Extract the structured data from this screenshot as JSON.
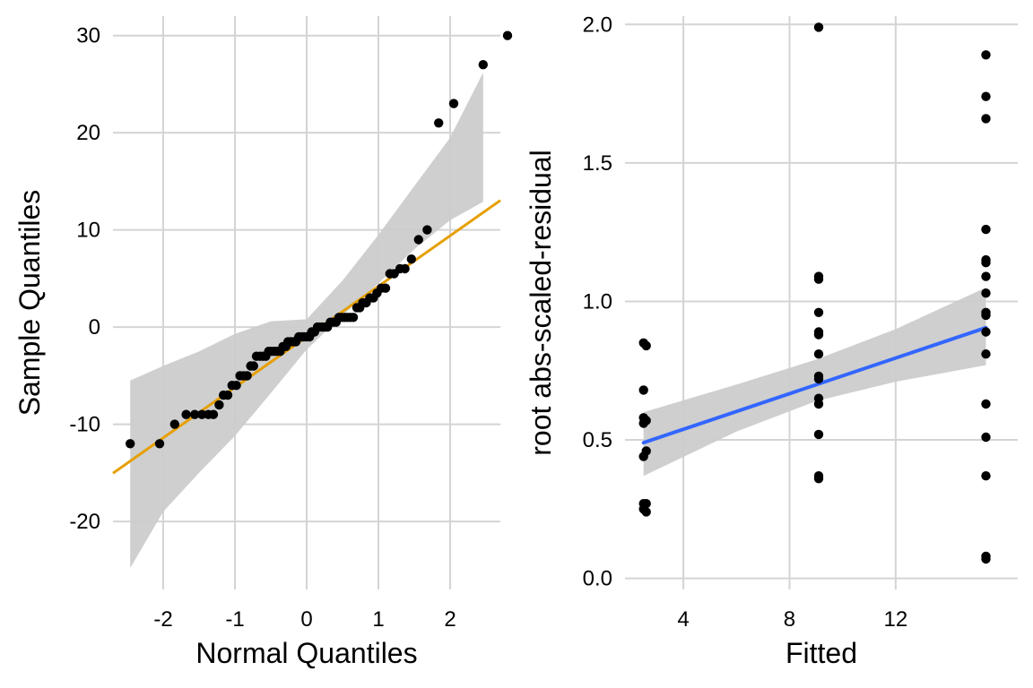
{
  "chart_data": [
    {
      "type": "scatter",
      "panel": "qq",
      "xlabel": "Normal Quantiles",
      "ylabel": "Sample Quantiles",
      "xlim": [
        -2.7,
        2.7
      ],
      "ylim": [
        -27,
        32
      ],
      "x_ticks": [
        -2,
        -1,
        0,
        1,
        2
      ],
      "x_tick_labels": [
        "-2",
        "-1",
        "0",
        "1",
        "2"
      ],
      "y_ticks": [
        -20,
        -10,
        0,
        10,
        20,
        30
      ],
      "y_tick_labels": [
        "-20",
        "-10",
        "0",
        "10",
        "20",
        "30"
      ],
      "grid": true,
      "reference_line": {
        "intercept": -1.0,
        "slope": 5.2,
        "color": "#e69f00"
      },
      "confidence_band": {
        "color": "#cccccc",
        "x": [
          -2.46,
          -2.0,
          -1.5,
          -1.0,
          -0.5,
          0.0,
          0.5,
          1.0,
          1.5,
          2.0,
          2.46
        ],
        "lower": [
          -24.8,
          -19.0,
          -15.0,
          -11.2,
          -6.8,
          -2.3,
          1.2,
          4.5,
          8.0,
          11.0,
          12.9
        ],
        "upper": [
          -5.5,
          -4.0,
          -2.5,
          -0.7,
          0.6,
          0.8,
          4.8,
          9.5,
          14.5,
          19.5,
          26.2
        ]
      },
      "points": [
        [
          -2.46,
          -12
        ],
        [
          -2.05,
          -12
        ],
        [
          -1.84,
          -10
        ],
        [
          -1.68,
          -9
        ],
        [
          -1.56,
          -9
        ],
        [
          -1.46,
          -9
        ],
        [
          -1.37,
          -9
        ],
        [
          -1.3,
          -9
        ],
        [
          -1.22,
          -8
        ],
        [
          -1.16,
          -7
        ],
        [
          -1.1,
          -7
        ],
        [
          -1.04,
          -6
        ],
        [
          -0.98,
          -6
        ],
        [
          -0.93,
          -5
        ],
        [
          -0.88,
          -5
        ],
        [
          -0.83,
          -5
        ],
        [
          -0.78,
          -4
        ],
        [
          -0.74,
          -4
        ],
        [
          -0.7,
          -3
        ],
        [
          -0.65,
          -3
        ],
        [
          -0.61,
          -3
        ],
        [
          -0.57,
          -3
        ],
        [
          -0.53,
          -2.5
        ],
        [
          -0.49,
          -2.5
        ],
        [
          -0.45,
          -2.5
        ],
        [
          -0.41,
          -2.5
        ],
        [
          -0.37,
          -2.5
        ],
        [
          -0.33,
          -2
        ],
        [
          -0.29,
          -2
        ],
        [
          -0.26,
          -1.5
        ],
        [
          -0.22,
          -1.5
        ],
        [
          -0.18,
          -1.5
        ],
        [
          -0.15,
          -1.5
        ],
        [
          -0.11,
          -1
        ],
        [
          -0.07,
          -1
        ],
        [
          -0.04,
          -1
        ],
        [
          0.0,
          -1
        ],
        [
          0.04,
          -1
        ],
        [
          0.07,
          -0.5
        ],
        [
          0.11,
          -0.5
        ],
        [
          0.15,
          0
        ],
        [
          0.18,
          0
        ],
        [
          0.22,
          0
        ],
        [
          0.26,
          0
        ],
        [
          0.29,
          0
        ],
        [
          0.33,
          0.5
        ],
        [
          0.37,
          0.5
        ],
        [
          0.41,
          0.5
        ],
        [
          0.45,
          1
        ],
        [
          0.49,
          1
        ],
        [
          0.53,
          1
        ],
        [
          0.57,
          1
        ],
        [
          0.61,
          1
        ],
        [
          0.65,
          1
        ],
        [
          0.7,
          2
        ],
        [
          0.74,
          2
        ],
        [
          0.78,
          2.5
        ],
        [
          0.83,
          2.5
        ],
        [
          0.88,
          3
        ],
        [
          0.93,
          3
        ],
        [
          0.98,
          3.5
        ],
        [
          1.04,
          4
        ],
        [
          1.1,
          4
        ],
        [
          1.16,
          5.5
        ],
        [
          1.22,
          5.5
        ],
        [
          1.3,
          6
        ],
        [
          1.37,
          6
        ],
        [
          1.46,
          7
        ],
        [
          1.56,
          9
        ],
        [
          1.68,
          10
        ],
        [
          1.84,
          21
        ],
        [
          2.05,
          23
        ],
        [
          2.46,
          27
        ],
        [
          2.8,
          30
        ]
      ]
    },
    {
      "type": "scatter",
      "panel": "scale-location",
      "xlabel": "Fitted",
      "ylabel": "root abs-scaled-residual",
      "xlim": [
        1.8,
        16.6
      ],
      "ylim": [
        -0.04,
        2.03
      ],
      "x_ticks": [
        4,
        8,
        12
      ],
      "x_tick_labels": [
        "4",
        "8",
        "12"
      ],
      "y_ticks": [
        0.0,
        0.5,
        1.0,
        1.5,
        2.0
      ],
      "y_tick_labels": [
        "0.0",
        "0.5",
        "1.0",
        "1.5",
        "2.0"
      ],
      "grid": true,
      "smooth_line": {
        "x": [
          2.5,
          15.4
        ],
        "y": [
          0.49,
          0.905
        ],
        "color": "#3366ff"
      },
      "confidence_band": {
        "color": "#cccccc",
        "x": [
          2.5,
          6.0,
          9.0,
          12.0,
          15.4
        ],
        "lower": [
          0.37,
          0.53,
          0.64,
          0.71,
          0.77
        ],
        "upper": [
          0.6,
          0.7,
          0.79,
          0.9,
          1.05
        ]
      },
      "points": [
        [
          2.5,
          0.85
        ],
        [
          2.6,
          0.84
        ],
        [
          2.5,
          0.68
        ],
        [
          2.5,
          0.58
        ],
        [
          2.6,
          0.57
        ],
        [
          2.5,
          0.56
        ],
        [
          2.6,
          0.46
        ],
        [
          2.5,
          0.44
        ],
        [
          2.5,
          0.27
        ],
        [
          2.6,
          0.27
        ],
        [
          2.5,
          0.25
        ],
        [
          2.6,
          0.24
        ],
        [
          9.1,
          1.99
        ],
        [
          9.1,
          1.09
        ],
        [
          9.1,
          1.08
        ],
        [
          9.1,
          0.96
        ],
        [
          9.1,
          0.89
        ],
        [
          9.1,
          0.88
        ],
        [
          9.1,
          0.81
        ],
        [
          9.1,
          0.73
        ],
        [
          9.1,
          0.72
        ],
        [
          9.1,
          0.65
        ],
        [
          9.1,
          0.63
        ],
        [
          9.1,
          0.52
        ],
        [
          9.1,
          0.37
        ],
        [
          9.1,
          0.36
        ],
        [
          15.4,
          1.89
        ],
        [
          15.4,
          1.74
        ],
        [
          15.4,
          1.66
        ],
        [
          15.4,
          1.26
        ],
        [
          15.4,
          1.15
        ],
        [
          15.4,
          1.14
        ],
        [
          15.4,
          1.09
        ],
        [
          15.4,
          1.03
        ],
        [
          15.4,
          0.96
        ],
        [
          15.4,
          0.95
        ],
        [
          15.4,
          0.89
        ],
        [
          15.4,
          0.81
        ],
        [
          15.4,
          0.63
        ],
        [
          15.4,
          0.51
        ],
        [
          15.4,
          0.37
        ],
        [
          15.4,
          0.08
        ],
        [
          15.4,
          0.07
        ]
      ]
    }
  ]
}
